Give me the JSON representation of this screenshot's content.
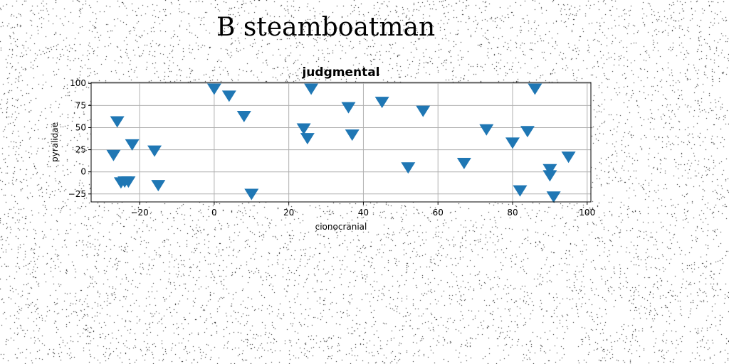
{
  "page": {
    "title": "B steamboatman"
  },
  "colors": {
    "marker": "#1f77b4",
    "grid": "#b0b0b0",
    "axes": "#000000",
    "noise": "#000000"
  },
  "chart_data": {
    "type": "scatter",
    "title": "judgmental",
    "xlabel": "cionocranial",
    "ylabel": "pyralidae",
    "xlim": [
      -33,
      101
    ],
    "ylim": [
      -34,
      101
    ],
    "xticks": [
      -20,
      0,
      20,
      40,
      60,
      80,
      100
    ],
    "yticks": [
      -25,
      0,
      25,
      50,
      75,
      100
    ],
    "grid": true,
    "marker": "triangle-down",
    "series": [
      {
        "points": [
          [
            -27,
            20
          ],
          [
            -26,
            58
          ],
          [
            -25,
            -11
          ],
          [
            -24,
            -10
          ],
          [
            -23,
            -10
          ],
          [
            -22,
            32
          ],
          [
            -16,
            25
          ],
          [
            -15,
            -14
          ],
          [
            0,
            95
          ],
          [
            4,
            87
          ],
          [
            8,
            64
          ],
          [
            10,
            -24
          ],
          [
            24,
            50
          ],
          [
            25,
            39
          ],
          [
            26,
            95
          ],
          [
            36,
            74
          ],
          [
            37,
            43
          ],
          [
            45,
            80
          ],
          [
            52,
            6
          ],
          [
            56,
            70
          ],
          [
            67,
            11
          ],
          [
            73,
            49
          ],
          [
            80,
            34
          ],
          [
            82,
            -20
          ],
          [
            84,
            47
          ],
          [
            86,
            95
          ],
          [
            90,
            4
          ],
          [
            90,
            -3
          ],
          [
            91,
            -27
          ],
          [
            95,
            18
          ]
        ]
      }
    ]
  }
}
